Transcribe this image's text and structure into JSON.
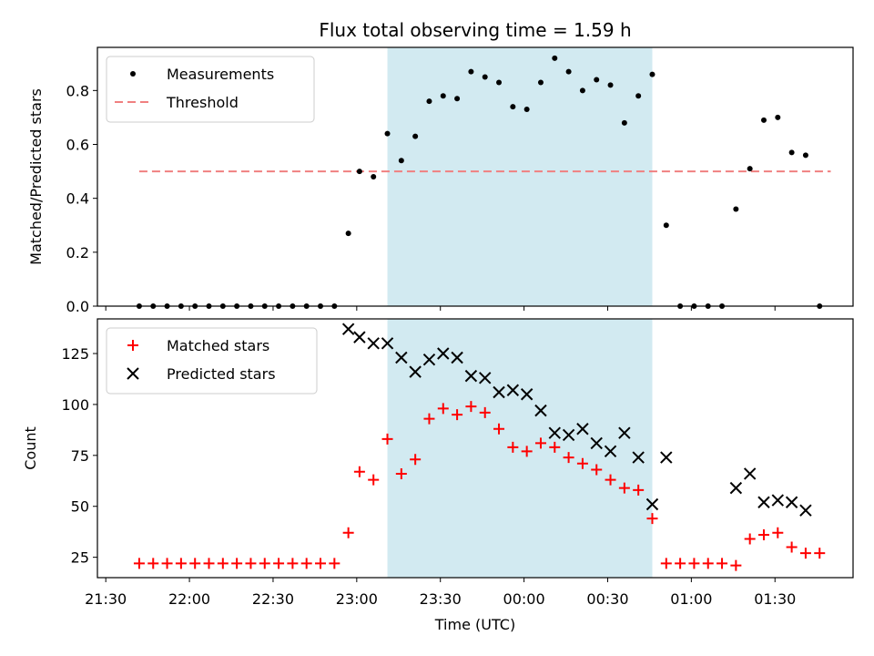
{
  "chart_data": [
    {
      "type": "scatter",
      "title": "Flux total observing time = 1.59 h",
      "ylabel": "Matched/Predicted stars",
      "ylim": [
        0,
        0.96
      ],
      "yticks": [
        0.0,
        0.2,
        0.4,
        0.6,
        0.8
      ],
      "ytick_labels": [
        "0.0",
        "0.2",
        "0.4",
        "0.6",
        "0.8"
      ],
      "xlim_minutes": [
        -3,
        268
      ],
      "legend_position": "top-left",
      "span": {
        "start": "23:11",
        "end": "00:46",
        "color": "#add8e6"
      },
      "threshold": {
        "name": "Threshold",
        "value": 0.5,
        "x_start": "21:42",
        "x_end": "01:50",
        "color": "#f08080"
      },
      "series": [
        {
          "name": "Measurements",
          "color": "#000000",
          "x": [
            "21:42",
            "21:47",
            "21:52",
            "21:57",
            "22:02",
            "22:07",
            "22:12",
            "22:17",
            "22:22",
            "22:27",
            "22:32",
            "22:37",
            "22:42",
            "22:47",
            "22:52",
            "22:57",
            "23:01",
            "23:06",
            "23:11",
            "23:16",
            "23:21",
            "23:26",
            "23:31",
            "23:36",
            "23:41",
            "23:46",
            "23:51",
            "23:56",
            "00:01",
            "00:06",
            "00:11",
            "00:16",
            "00:21",
            "00:26",
            "00:31",
            "00:36",
            "00:41",
            "00:46",
            "00:51",
            "00:56",
            "01:01",
            "01:06",
            "01:11",
            "01:16",
            "01:21",
            "01:26",
            "01:31",
            "01:36",
            "01:41",
            "01:46"
          ],
          "y": [
            0,
            0,
            0,
            0,
            0,
            0,
            0,
            0,
            0,
            0,
            0,
            0,
            0,
            0,
            0,
            0.27,
            0.5,
            0.48,
            0.64,
            0.54,
            0.63,
            0.76,
            0.78,
            0.77,
            0.87,
            0.85,
            0.83,
            0.74,
            0.73,
            0.83,
            0.92,
            0.87,
            0.8,
            0.84,
            0.82,
            0.68,
            0.78,
            0.86,
            0.3,
            0,
            0,
            0,
            0,
            0.36,
            0.51,
            0.69,
            0.7,
            0.57,
            0.56,
            0
          ]
        }
      ]
    },
    {
      "type": "scatter",
      "xlabel": "Time (UTC)",
      "ylabel": "Count",
      "ylim": [
        15,
        142
      ],
      "yticks": [
        25,
        50,
        75,
        100,
        125
      ],
      "ytick_labels": [
        "25",
        "50",
        "75",
        "100",
        "125"
      ],
      "xticks": [
        "21:30",
        "22:00",
        "22:30",
        "23:00",
        "23:30",
        "00:00",
        "00:30",
        "01:00",
        "01:30"
      ],
      "xlim_minutes": [
        -3,
        268
      ],
      "legend_position": "top-left",
      "span": {
        "start": "23:11",
        "end": "00:46",
        "color": "#add8e6"
      },
      "series": [
        {
          "name": "Matched stars",
          "marker": "+",
          "color": "#ff0000",
          "x": [
            "21:42",
            "21:47",
            "21:52",
            "21:57",
            "22:02",
            "22:07",
            "22:12",
            "22:17",
            "22:22",
            "22:27",
            "22:32",
            "22:37",
            "22:42",
            "22:47",
            "22:52",
            "22:57",
            "23:01",
            "23:06",
            "23:11",
            "23:16",
            "23:21",
            "23:26",
            "23:31",
            "23:36",
            "23:41",
            "23:46",
            "23:51",
            "23:56",
            "00:01",
            "00:06",
            "00:11",
            "00:16",
            "00:21",
            "00:26",
            "00:31",
            "00:36",
            "00:41",
            "00:46",
            "00:51",
            "00:56",
            "01:01",
            "01:06",
            "01:11",
            "01:16",
            "01:21",
            "01:26",
            "01:31",
            "01:36",
            "01:41",
            "01:46"
          ],
          "y": [
            22,
            22,
            22,
            22,
            22,
            22,
            22,
            22,
            22,
            22,
            22,
            22,
            22,
            22,
            22,
            37,
            67,
            63,
            83,
            66,
            73,
            93,
            98,
            95,
            99,
            96,
            88,
            79,
            77,
            81,
            79,
            74,
            71,
            68,
            63,
            59,
            58,
            44,
            22,
            22,
            22,
            22,
            22,
            21,
            34,
            36,
            37,
            30,
            27,
            27
          ]
        },
        {
          "name": "Predicted stars",
          "marker": "x",
          "color": "#000000",
          "x": [
            "22:57",
            "23:01",
            "23:06",
            "23:11",
            "23:16",
            "23:21",
            "23:26",
            "23:31",
            "23:36",
            "23:41",
            "23:46",
            "23:51",
            "23:56",
            "00:01",
            "00:06",
            "00:11",
            "00:16",
            "00:21",
            "00:26",
            "00:31",
            "00:36",
            "00:41",
            "00:46",
            "00:51",
            "01:16",
            "01:21",
            "01:26",
            "01:31",
            "01:36",
            "01:41"
          ],
          "y": [
            137,
            133,
            130,
            130,
            123,
            116,
            122,
            125,
            123,
            114,
            113,
            106,
            107,
            105,
            97,
            86,
            85,
            88,
            81,
            77,
            86,
            74,
            51,
            74,
            59,
            66,
            52,
            53,
            52,
            48
          ]
        }
      ]
    }
  ]
}
